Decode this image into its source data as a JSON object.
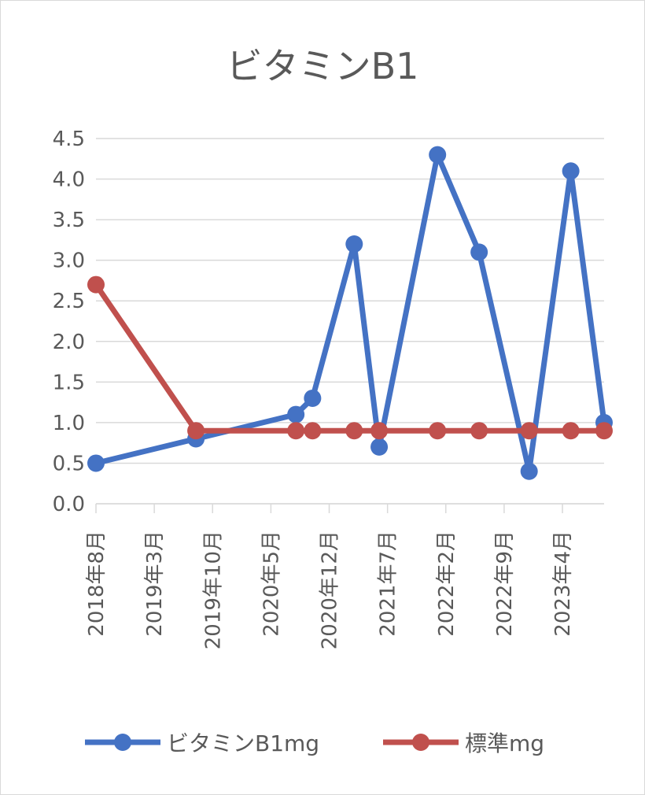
{
  "chart_data": {
    "type": "line",
    "title": "ビタミンB1",
    "xlabel": "",
    "ylabel": "",
    "x_axis": {
      "type": "date",
      "range": [
        "2018-08",
        "2023-09"
      ],
      "tick_labels": [
        "2018年8月",
        "2019年3月",
        "2019年10月",
        "2020年5月",
        "2020年12月",
        "2021年7月",
        "2022年2月",
        "2022年9月",
        "2023年4月"
      ]
    },
    "ylim": [
      0,
      4.5
    ],
    "yticks": [
      "0.0",
      "0.5",
      "1.0",
      "1.5",
      "2.0",
      "2.5",
      "3.0",
      "3.5",
      "4.0",
      "4.5"
    ],
    "grid": "horizontal",
    "legend_position": "bottom",
    "series": [
      {
        "name": "ビタミンB1mg",
        "color": "#4472c4",
        "points": [
          {
            "x": "2018-08",
            "y": 0.5
          },
          {
            "x": "2019-08",
            "y": 0.8
          },
          {
            "x": "2020-08",
            "y": 1.1
          },
          {
            "x": "2020-10",
            "y": 1.3
          },
          {
            "x": "2021-03",
            "y": 3.2
          },
          {
            "x": "2021-06",
            "y": 0.7
          },
          {
            "x": "2022-01",
            "y": 4.3
          },
          {
            "x": "2022-06",
            "y": 3.1
          },
          {
            "x": "2022-12",
            "y": 0.4
          },
          {
            "x": "2023-05",
            "y": 4.1
          },
          {
            "x": "2023-09",
            "y": 1.0
          }
        ]
      },
      {
        "name": "標準mg",
        "color": "#c0504d",
        "points": [
          {
            "x": "2018-08",
            "y": 2.7
          },
          {
            "x": "2019-08",
            "y": 0.9
          },
          {
            "x": "2020-08",
            "y": 0.9
          },
          {
            "x": "2020-10",
            "y": 0.9
          },
          {
            "x": "2021-03",
            "y": 0.9
          },
          {
            "x": "2021-06",
            "y": 0.9
          },
          {
            "x": "2022-01",
            "y": 0.9
          },
          {
            "x": "2022-06",
            "y": 0.9
          },
          {
            "x": "2022-12",
            "y": 0.9
          },
          {
            "x": "2023-05",
            "y": 0.9
          },
          {
            "x": "2023-09",
            "y": 0.9
          }
        ]
      }
    ]
  },
  "colors": {
    "gridline": "#d9d9d9",
    "text": "#595959",
    "border": "#d9d9d9"
  }
}
